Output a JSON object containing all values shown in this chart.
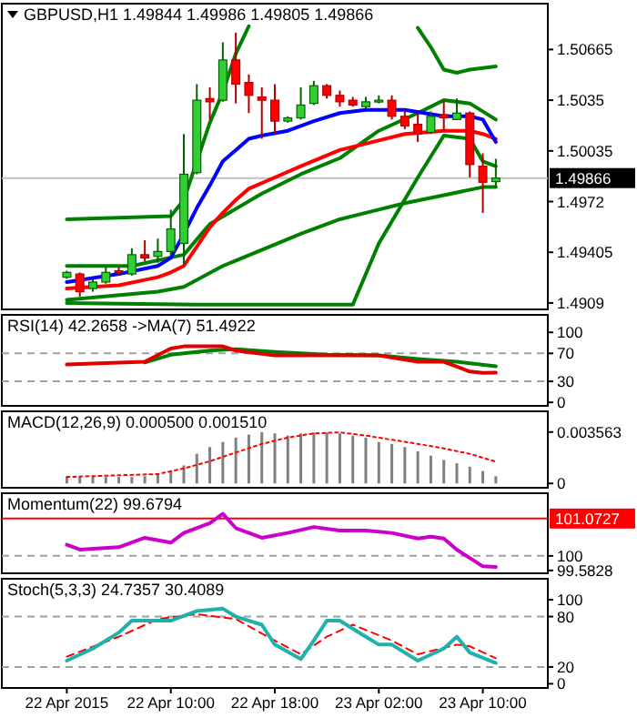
{
  "chart_data": [
    {
      "type": "candlestick",
      "title": "GBPUSD,H1 1.49844 1.49986 1.49805 1.49866",
      "xlim": [
        "2015-04-21T21:00",
        "2015-04-23T15:00"
      ],
      "ylim": [
        1.4905,
        1.5095
      ],
      "yticks": [
        1.50665,
        1.5035,
        1.50035,
        1.4972,
        1.49405,
        1.4909
      ],
      "tick_labels": "y",
      "x": [
        "2015-04-22T02:00",
        "2015-04-22T03:00",
        "2015-04-22T04:00",
        "2015-04-22T05:00",
        "2015-04-22T06:00",
        "2015-04-22T07:00",
        "2015-04-22T08:00",
        "2015-04-22T09:00",
        "2015-04-22T10:00",
        "2015-04-22T11:00",
        "2015-04-22T12:00",
        "2015-04-22T13:00",
        "2015-04-22T14:00",
        "2015-04-22T15:00",
        "2015-04-22T16:00",
        "2015-04-22T17:00",
        "2015-04-22T18:00",
        "2015-04-22T19:00",
        "2015-04-22T20:00",
        "2015-04-22T21:00",
        "2015-04-22T22:00",
        "2015-04-22T23:00",
        "2015-04-23T00:00",
        "2015-04-23T01:00",
        "2015-04-23T02:00",
        "2015-04-23T03:00",
        "2015-04-23T04:00",
        "2015-04-23T05:00",
        "2015-04-23T06:00",
        "2015-04-23T07:00",
        "2015-04-23T08:00",
        "2015-04-23T09:00",
        "2015-04-23T10:00",
        "2015-04-23T11:00"
      ],
      "ohlc": [
        [
          1.4925,
          1.4929,
          1.4924,
          1.4928
        ],
        [
          1.4927,
          1.4928,
          1.4913,
          1.4916
        ],
        [
          1.4918,
          1.4924,
          1.4916,
          1.4922
        ],
        [
          1.4922,
          1.4932,
          1.4921,
          1.4928
        ],
        [
          1.4929,
          1.4931,
          1.4926,
          1.4928
        ],
        [
          1.4927,
          1.4943,
          1.4926,
          1.4939
        ],
        [
          1.4939,
          1.4948,
          1.4935,
          1.4937
        ],
        [
          1.4938,
          1.4949,
          1.4934,
          1.4941
        ],
        [
          1.4941,
          1.4967,
          1.4939,
          1.4955
        ],
        [
          1.4946,
          1.5014,
          1.4933,
          1.4989
        ],
        [
          1.499,
          1.5045,
          1.4989,
          1.5035
        ],
        [
          1.5036,
          1.5043,
          1.5023,
          1.5034
        ],
        [
          1.5035,
          1.5071,
          1.5034,
          1.506
        ],
        [
          1.506,
          1.5077,
          1.5033,
          1.5045
        ],
        [
          1.5046,
          1.5051,
          1.5027,
          1.5038
        ],
        [
          1.5037,
          1.5043,
          1.5011,
          1.5035
        ],
        [
          1.5035,
          1.5045,
          1.5014,
          1.5022
        ],
        [
          1.5022,
          1.5025,
          1.5021,
          1.5024
        ],
        [
          1.5024,
          1.5043,
          1.5023,
          1.5032
        ],
        [
          1.5033,
          1.5047,
          1.5032,
          1.5044
        ],
        [
          1.5044,
          1.5045,
          1.5036,
          1.5038
        ],
        [
          1.5038,
          1.5041,
          1.5031,
          1.5034
        ],
        [
          1.5035,
          1.5037,
          1.5031,
          1.5032
        ],
        [
          1.5031,
          1.5037,
          1.503,
          1.5034
        ],
        [
          1.5034,
          1.5038,
          1.5033,
          1.5035
        ],
        [
          1.5035,
          1.5038,
          1.5023,
          1.5025
        ],
        [
          1.5025,
          1.5029,
          1.5017,
          1.5019
        ],
        [
          1.502,
          1.5027,
          1.5009,
          1.5014
        ],
        [
          1.5015,
          1.5028,
          1.5014,
          1.5025
        ],
        [
          1.5026,
          1.5035,
          1.5016,
          1.5024
        ],
        [
          1.5023,
          1.5036,
          1.5023,
          1.5027
        ],
        [
          1.5027,
          1.5028,
          1.4987,
          1.4995
        ],
        [
          1.4994,
          1.5002,
          1.4965,
          1.4984
        ],
        [
          1.49844,
          1.49986,
          1.49805,
          1.49866
        ]
      ],
      "series": [
        {
          "type": "line",
          "color": "#008000",
          "x": [
            "2015-04-22T02:00",
            "2015-04-22T10:00",
            "2015-04-22T11:00",
            "2015-04-22T12:00",
            "2015-04-22T13:00",
            "2015-04-22T14:00",
            "2015-04-22T15:00",
            "2015-04-22T16:00",
            "2015-04-22T17:00",
            "2015-04-23T05:00",
            "2015-04-23T06:00",
            "2015-04-23T07:00",
            "2015-04-23T08:00",
            "2015-04-23T09:00",
            "2015-04-23T11:00"
          ],
          "values": [
            1.4961,
            1.4963,
            1.4973,
            1.4997,
            1.5021,
            1.504,
            1.5064,
            1.5081,
            null,
            1.508,
            1.5068,
            1.5054,
            1.5052,
            1.5054,
            1.5056
          ]
        },
        {
          "type": "line",
          "color": "#008000",
          "x": [
            "2015-04-22T02:00",
            "2015-04-22T07:00",
            "2015-04-22T11:00",
            "2015-04-22T13:00",
            "2015-04-22T17:00",
            "2015-04-22T20:00",
            "2015-04-22T23:00",
            "2015-04-23T02:00",
            "2015-04-23T05:00",
            "2015-04-23T07:00",
            "2015-04-23T09:00",
            "2015-04-23T11:00"
          ],
          "values": [
            1.4932,
            1.4932,
            1.4939,
            1.4958,
            1.4977,
            1.4989,
            1.4999,
            1.5016,
            1.5027,
            1.5035,
            1.5033,
            1.5023
          ]
        },
        {
          "type": "line",
          "color": "#008000",
          "x": [
            "2015-04-22T02:00",
            "2015-04-22T12:00",
            "2015-04-22T22:00",
            "2015-04-23T00:00",
            "2015-04-23T02:00",
            "2015-04-23T05:00",
            "2015-04-23T07:00",
            "2015-04-23T09:00",
            "2015-04-23T10:00",
            "2015-04-23T11:00"
          ],
          "values": [
            1.4909,
            1.4908,
            1.4908,
            1.4908,
            1.4946,
            1.4987,
            1.5013,
            1.5011,
            1.4997,
            1.4994
          ]
        },
        {
          "type": "line",
          "color": "#008000",
          "x": [
            "2015-04-22T02:00",
            "2015-04-22T09:00",
            "2015-04-22T11:00",
            "2015-04-22T14:00",
            "2015-04-22T17:00",
            "2015-04-22T20:00",
            "2015-04-22T23:00",
            "2015-04-23T01:00",
            "2015-04-23T04:00",
            "2015-04-23T07:00",
            "2015-04-23T10:00",
            "2015-04-23T11:00"
          ],
          "values": [
            1.4911,
            1.4916,
            1.4919,
            1.4932,
            1.4942,
            1.4952,
            1.4961,
            1.4965,
            1.4971,
            1.4976,
            1.4981,
            1.4981
          ]
        },
        {
          "type": "line",
          "color": "#ff0000",
          "x": [
            "2015-04-22T02:00",
            "2015-04-22T06:00",
            "2015-04-22T09:00",
            "2015-04-22T10:00",
            "2015-04-22T11:00",
            "2015-04-22T12:00",
            "2015-04-22T13:00",
            "2015-04-22T14:00",
            "2015-04-22T15:00",
            "2015-04-22T16:00",
            "2015-04-22T18:00",
            "2015-04-22T20:00",
            "2015-04-22T23:00",
            "2015-04-23T01:00",
            "2015-04-23T04:00",
            "2015-04-23T07:00",
            "2015-04-23T09:00",
            "2015-04-23T10:00",
            "2015-04-23T11:00"
          ],
          "values": [
            1.4918,
            1.492,
            1.4925,
            1.4928,
            1.4932,
            1.4944,
            1.4956,
            1.4965,
            1.4973,
            1.498,
            1.4987,
            1.4994,
            1.5004,
            1.5008,
            1.5014,
            1.5016,
            1.5016,
            1.5014,
            1.5011
          ]
        },
        {
          "type": "line",
          "color": "#0000ff",
          "x": [
            "2015-04-22T02:00",
            "2015-04-22T06:00",
            "2015-04-22T09:00",
            "2015-04-22T10:00",
            "2015-04-22T11:00",
            "2015-04-22T12:00",
            "2015-04-22T13:00",
            "2015-04-22T14:00",
            "2015-04-22T15:00",
            "2015-04-22T16:00",
            "2015-04-22T17:00",
            "2015-04-22T19:00",
            "2015-04-22T21:00",
            "2015-04-22T23:00",
            "2015-04-23T01:00",
            "2015-04-23T04:00",
            "2015-04-23T07:00",
            "2015-04-23T09:00",
            "2015-04-23T10:00",
            "2015-04-23T11:00"
          ],
          "values": [
            1.4922,
            1.4927,
            1.4932,
            1.4937,
            1.4952,
            1.4968,
            1.4982,
            1.4997,
            1.5004,
            1.5011,
            1.5013,
            1.5016,
            1.5022,
            1.5027,
            1.5029,
            1.5029,
            1.5025,
            1.5025,
            1.5023,
            1.5009
          ]
        }
      ],
      "ref_lines": [
        {
          "axis": "y",
          "value": 1.49866,
          "label": "1.49866",
          "color": "#c0c0c0"
        }
      ]
    },
    {
      "type": "line",
      "title": "RSI(14) 42.2658 ->MA(7) 51.4922",
      "xlim": [
        "2015-04-21T21:00",
        "2015-04-23T15:00"
      ],
      "ylim": [
        -5,
        125
      ],
      "yticks": [
        100,
        70,
        30,
        0
      ],
      "tick_labels": "y",
      "ref_lines": [
        {
          "axis": "y",
          "value": 70,
          "color": "#a0a0a0",
          "line_style": "dashed"
        },
        {
          "axis": "y",
          "value": 30,
          "color": "#a0a0a0",
          "line_style": "dashed"
        }
      ],
      "series": [
        {
          "color": "#008000",
          "x": [
            "2015-04-22T08:00",
            "2015-04-22T10:00",
            "2015-04-22T13:00",
            "2015-04-22T15:00",
            "2015-04-22T18:00",
            "2015-04-22T22:00",
            "2015-04-23T02:00",
            "2015-04-23T05:00",
            "2015-04-23T08:00",
            "2015-04-23T11:00"
          ],
          "values": [
            57,
            68,
            74,
            76,
            72,
            68,
            67,
            62,
            58,
            51.5
          ]
        },
        {
          "color": "#e00000",
          "x": [
            "2015-04-22T02:00",
            "2015-04-22T08:00",
            "2015-04-22T10:00",
            "2015-04-22T11:00",
            "2015-04-22T14:00",
            "2015-04-22T15:00",
            "2015-04-22T18:00",
            "2015-04-22T20:00",
            "2015-04-23T02:00",
            "2015-04-23T05:00",
            "2015-04-23T07:00",
            "2015-04-23T08:00",
            "2015-04-23T09:00",
            "2015-04-23T10:00",
            "2015-04-23T11:00"
          ],
          "values": [
            54,
            58,
            77,
            80,
            80,
            74,
            67,
            67,
            67,
            58,
            58,
            51,
            44,
            42,
            42.3
          ]
        }
      ]
    },
    {
      "type": "bar",
      "title": "MACD(12,26,9) 0.000500 0.001510",
      "xlim": [
        "2015-04-21T21:00",
        "2015-04-23T15:00"
      ],
      "ylim": [
        -0.0003,
        0.005
      ],
      "yticks": [
        0.003563,
        0
      ],
      "tick_labels": "y",
      "x": [
        "2015-04-22T02:00",
        "2015-04-22T03:00",
        "2015-04-22T04:00",
        "2015-04-22T05:00",
        "2015-04-22T06:00",
        "2015-04-22T07:00",
        "2015-04-22T08:00",
        "2015-04-22T09:00",
        "2015-04-22T10:00",
        "2015-04-22T11:00",
        "2015-04-22T12:00",
        "2015-04-22T13:00",
        "2015-04-22T14:00",
        "2015-04-22T15:00",
        "2015-04-22T16:00",
        "2015-04-22T17:00",
        "2015-04-22T18:00",
        "2015-04-22T19:00",
        "2015-04-22T20:00",
        "2015-04-22T21:00",
        "2015-04-22T22:00",
        "2015-04-22T23:00",
        "2015-04-23T00:00",
        "2015-04-23T01:00",
        "2015-04-23T02:00",
        "2015-04-23T03:00",
        "2015-04-23T04:00",
        "2015-04-23T05:00",
        "2015-04-23T06:00",
        "2015-04-23T07:00",
        "2015-04-23T08:00",
        "2015-04-23T09:00",
        "2015-04-23T10:00",
        "2015-04-23T11:00"
      ],
      "series": [
        {
          "type": "bar",
          "color": "#808080",
          "values": [
            0.00045,
            0.00045,
            0.00045,
            0.00045,
            0.00045,
            0.00045,
            0.00051,
            0.00065,
            0.00086,
            0.00125,
            0.00205,
            0.00252,
            0.00288,
            0.00318,
            0.00339,
            0.00356,
            0.00347,
            0.00332,
            0.00347,
            0.00354,
            0.00354,
            0.00347,
            0.00332,
            0.00318,
            0.00288,
            0.00274,
            0.00252,
            0.00223,
            0.00193,
            0.00163,
            0.0014,
            0.00116,
            0.00086,
            0.0005
          ]
        },
        {
          "type": "line",
          "color": "#ff0000",
          "line_style": "dotted",
          "x": [
            "2015-04-22T02:00",
            "2015-04-22T09:00",
            "2015-04-22T11:00",
            "2015-04-22T13:00",
            "2015-04-22T15:00",
            "2015-04-22T17:00",
            "2015-04-22T19:00",
            "2015-04-22T21:00",
            "2015-04-22T23:00",
            "2015-04-23T01:00",
            "2015-04-23T03:00",
            "2015-04-23T05:00",
            "2015-04-23T07:00",
            "2015-04-23T09:00",
            "2015-04-23T11:00"
          ],
          "values": [
            0.00045,
            0.00065,
            0.00104,
            0.00154,
            0.00214,
            0.00274,
            0.00318,
            0.00347,
            0.00354,
            0.00332,
            0.00303,
            0.00274,
            0.00243,
            0.00205,
            0.00151
          ]
        }
      ]
    },
    {
      "type": "line",
      "title": "Momentum(22) 99.6794",
      "xlim": [
        "2015-04-21T21:00",
        "2015-04-23T15:00"
      ],
      "ylim": [
        99.5,
        101.8
      ],
      "yticks": [
        100,
        99.5828
      ],
      "tick_labels": "y",
      "ref_lines": [
        {
          "axis": "y",
          "value": 101.0727,
          "label": "101.0727",
          "color": "#ff0000"
        },
        {
          "axis": "y",
          "value": 100,
          "color": "#a0a0a0",
          "line_style": "dashed"
        }
      ],
      "series": [
        {
          "color": "#cc00cc",
          "x": [
            "2015-04-22T02:00",
            "2015-04-22T03:00",
            "2015-04-22T06:00",
            "2015-04-22T08:00",
            "2015-04-22T10:00",
            "2015-04-22T11:00",
            "2015-04-22T13:00",
            "2015-04-22T14:00",
            "2015-04-22T15:00",
            "2015-04-22T17:00",
            "2015-04-22T19:00",
            "2015-04-22T21:00",
            "2015-04-22T23:00",
            "2015-04-23T01:00",
            "2015-04-23T03:00",
            "2015-04-23T05:00",
            "2015-04-23T06:00",
            "2015-04-23T07:00",
            "2015-04-23T08:00",
            "2015-04-23T10:00",
            "2015-04-23T11:00"
          ],
          "values": [
            100.32,
            100.18,
            100.25,
            100.52,
            100.38,
            100.66,
            100.94,
            101.21,
            100.8,
            100.52,
            100.66,
            100.83,
            100.73,
            100.73,
            100.66,
            100.5,
            100.55,
            100.5,
            100.18,
            99.7,
            99.68
          ]
        }
      ]
    },
    {
      "type": "line",
      "title": "Stoch(5,3,3) 24.7357 30.4089",
      "xlim": [
        "2015-04-21T21:00",
        "2015-04-23T15:00"
      ],
      "ylim": [
        -5,
        125
      ],
      "yticks": [
        100,
        80,
        20,
        0
      ],
      "xticks": [
        {
          "value": "2015-04-22T02:00",
          "label": "22 Apr 2015"
        },
        {
          "value": "2015-04-22T10:00",
          "label": "22 Apr 10:00"
        },
        {
          "value": "2015-04-22T18:00",
          "label": "22 Apr 18:00"
        },
        {
          "value": "2015-04-23T02:00",
          "label": "23 Apr 02:00"
        },
        {
          "value": "2015-04-23T10:00",
          "label": "23 Apr 10:00"
        }
      ],
      "ref_lines": [
        {
          "axis": "y",
          "value": 80,
          "color": "#a0a0a0",
          "line_style": "dashed"
        },
        {
          "axis": "y",
          "value": 20,
          "color": "#a0a0a0",
          "line_style": "dashed"
        }
      ],
      "series": [
        {
          "color": "#ff0000",
          "line_style": "dashed",
          "x": [
            "2015-04-22T02:00",
            "2015-04-22T06:00",
            "2015-04-22T09:00",
            "2015-04-22T12:00",
            "2015-04-22T15:00",
            "2015-04-22T18:00",
            "2015-04-22T20:00",
            "2015-04-22T22:00",
            "2015-04-23T00:00",
            "2015-04-23T03:00",
            "2015-04-23T05:00",
            "2015-04-23T08:00",
            "2015-04-23T09:00",
            "2015-04-23T11:00"
          ],
          "values": [
            32.3,
            56,
            77,
            82.8,
            77,
            51.4,
            35.1,
            56,
            70.3,
            51.4,
            35.1,
            46.6,
            44.6,
            30.41
          ]
        },
        {
          "color": "#20b2aa",
          "x": [
            "2015-04-22T02:00",
            "2015-04-22T04:00",
            "2015-04-22T06:00",
            "2015-04-22T07:00",
            "2015-04-22T09:00",
            "2015-04-22T10:00",
            "2015-04-22T12:00",
            "2015-04-22T14:00",
            "2015-04-22T15:00",
            "2015-04-22T17:00",
            "2015-04-22T18:00",
            "2015-04-22T20:00",
            "2015-04-22T21:00",
            "2015-04-22T22:00",
            "2015-04-22T23:00",
            "2015-04-23T01:00",
            "2015-04-23T02:00",
            "2015-04-23T03:00",
            "2015-04-23T05:00",
            "2015-04-23T07:00",
            "2015-04-23T08:00",
            "2015-04-23T09:00",
            "2015-04-23T11:00"
          ],
          "values": [
            27.5,
            41.8,
            60.9,
            75.1,
            75.1,
            75.1,
            86.6,
            89.4,
            80,
            70.3,
            46.6,
            29.4,
            51.4,
            75.1,
            75.1,
            56,
            46.6,
            46.6,
            27.5,
            41.8,
            56,
            37.1,
            24.74
          ]
        }
      ]
    }
  ]
}
